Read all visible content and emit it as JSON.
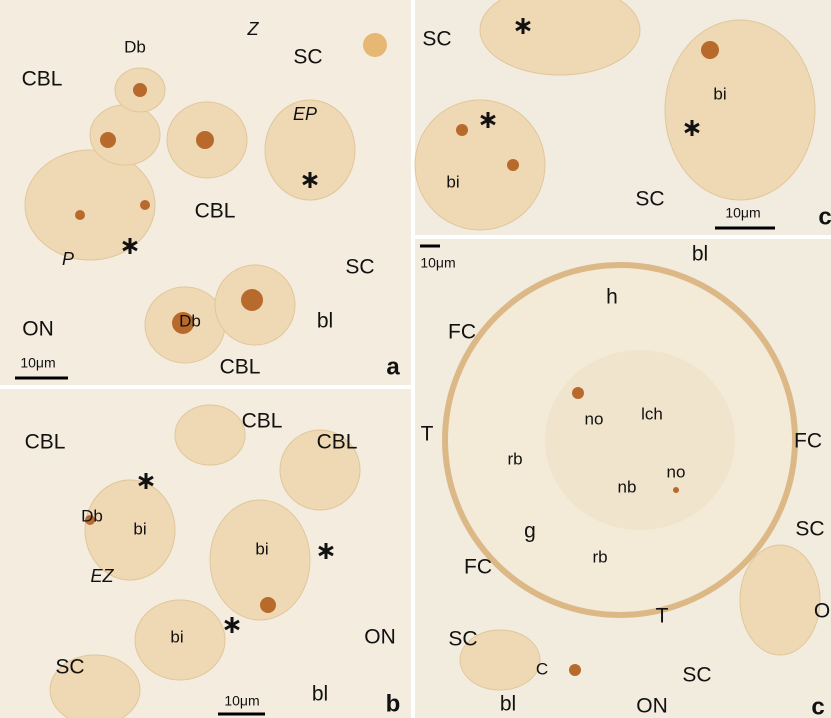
{
  "panels": [
    {
      "letter": "a",
      "scale_bar": "10μm",
      "labels": [
        "Z",
        "Db",
        "SC",
        "CBL",
        "EP",
        "CBL",
        "P",
        "Db",
        "SC",
        "bl",
        "ON",
        "CBL"
      ]
    },
    {
      "letter": "c",
      "scale_bar": "10μm",
      "labels": [
        "SC",
        "bi",
        "bi",
        "SC"
      ]
    },
    {
      "letter": "b",
      "scale_bar": "10μm",
      "labels": [
        "CBL",
        "CBL",
        "CBL",
        "Db",
        "bi",
        "bi",
        "EZ",
        "ON",
        "bi",
        "SC",
        "bl"
      ]
    },
    {
      "letter": "c",
      "scale_bar": "10μm",
      "labels": [
        "bl",
        "h",
        "FC",
        "no",
        "lch",
        "T",
        "FC",
        "rb",
        "nb",
        "no",
        "g",
        "SC",
        "FC",
        "rb",
        "T",
        "O",
        "SC",
        "C",
        "SC",
        "bl",
        "ON"
      ]
    }
  ]
}
